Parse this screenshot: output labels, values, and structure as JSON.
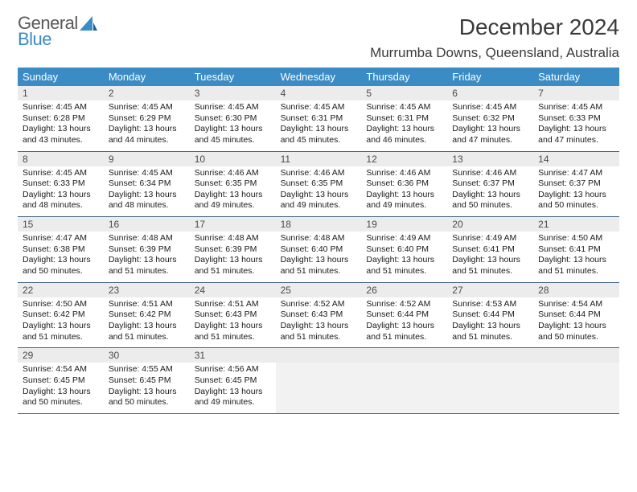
{
  "logo": {
    "line1": "General",
    "line2": "Blue"
  },
  "title": "December 2024",
  "location": "Murrumba Downs, Queensland, Australia",
  "colors": {
    "header_bg": "#3b8bc4",
    "header_text": "#ffffff",
    "daynum_bg": "#ececec",
    "border": "#446688",
    "logo_gray": "#58595b",
    "logo_blue": "#3b8bc4"
  },
  "dayNames": [
    "Sunday",
    "Monday",
    "Tuesday",
    "Wednesday",
    "Thursday",
    "Friday",
    "Saturday"
  ],
  "weeks": [
    [
      {
        "n": "1",
        "sr": "4:45 AM",
        "ss": "6:28 PM",
        "dl": "13 hours and 43 minutes."
      },
      {
        "n": "2",
        "sr": "4:45 AM",
        "ss": "6:29 PM",
        "dl": "13 hours and 44 minutes."
      },
      {
        "n": "3",
        "sr": "4:45 AM",
        "ss": "6:30 PM",
        "dl": "13 hours and 45 minutes."
      },
      {
        "n": "4",
        "sr": "4:45 AM",
        "ss": "6:31 PM",
        "dl": "13 hours and 45 minutes."
      },
      {
        "n": "5",
        "sr": "4:45 AM",
        "ss": "6:31 PM",
        "dl": "13 hours and 46 minutes."
      },
      {
        "n": "6",
        "sr": "4:45 AM",
        "ss": "6:32 PM",
        "dl": "13 hours and 47 minutes."
      },
      {
        "n": "7",
        "sr": "4:45 AM",
        "ss": "6:33 PM",
        "dl": "13 hours and 47 minutes."
      }
    ],
    [
      {
        "n": "8",
        "sr": "4:45 AM",
        "ss": "6:33 PM",
        "dl": "13 hours and 48 minutes."
      },
      {
        "n": "9",
        "sr": "4:45 AM",
        "ss": "6:34 PM",
        "dl": "13 hours and 48 minutes."
      },
      {
        "n": "10",
        "sr": "4:46 AM",
        "ss": "6:35 PM",
        "dl": "13 hours and 49 minutes."
      },
      {
        "n": "11",
        "sr": "4:46 AM",
        "ss": "6:35 PM",
        "dl": "13 hours and 49 minutes."
      },
      {
        "n": "12",
        "sr": "4:46 AM",
        "ss": "6:36 PM",
        "dl": "13 hours and 49 minutes."
      },
      {
        "n": "13",
        "sr": "4:46 AM",
        "ss": "6:37 PM",
        "dl": "13 hours and 50 minutes."
      },
      {
        "n": "14",
        "sr": "4:47 AM",
        "ss": "6:37 PM",
        "dl": "13 hours and 50 minutes."
      }
    ],
    [
      {
        "n": "15",
        "sr": "4:47 AM",
        "ss": "6:38 PM",
        "dl": "13 hours and 50 minutes."
      },
      {
        "n": "16",
        "sr": "4:48 AM",
        "ss": "6:39 PM",
        "dl": "13 hours and 51 minutes."
      },
      {
        "n": "17",
        "sr": "4:48 AM",
        "ss": "6:39 PM",
        "dl": "13 hours and 51 minutes."
      },
      {
        "n": "18",
        "sr": "4:48 AM",
        "ss": "6:40 PM",
        "dl": "13 hours and 51 minutes."
      },
      {
        "n": "19",
        "sr": "4:49 AM",
        "ss": "6:40 PM",
        "dl": "13 hours and 51 minutes."
      },
      {
        "n": "20",
        "sr": "4:49 AM",
        "ss": "6:41 PM",
        "dl": "13 hours and 51 minutes."
      },
      {
        "n": "21",
        "sr": "4:50 AM",
        "ss": "6:41 PM",
        "dl": "13 hours and 51 minutes."
      }
    ],
    [
      {
        "n": "22",
        "sr": "4:50 AM",
        "ss": "6:42 PM",
        "dl": "13 hours and 51 minutes."
      },
      {
        "n": "23",
        "sr": "4:51 AM",
        "ss": "6:42 PM",
        "dl": "13 hours and 51 minutes."
      },
      {
        "n": "24",
        "sr": "4:51 AM",
        "ss": "6:43 PM",
        "dl": "13 hours and 51 minutes."
      },
      {
        "n": "25",
        "sr": "4:52 AM",
        "ss": "6:43 PM",
        "dl": "13 hours and 51 minutes."
      },
      {
        "n": "26",
        "sr": "4:52 AM",
        "ss": "6:44 PM",
        "dl": "13 hours and 51 minutes."
      },
      {
        "n": "27",
        "sr": "4:53 AM",
        "ss": "6:44 PM",
        "dl": "13 hours and 51 minutes."
      },
      {
        "n": "28",
        "sr": "4:54 AM",
        "ss": "6:44 PM",
        "dl": "13 hours and 50 minutes."
      }
    ],
    [
      {
        "n": "29",
        "sr": "4:54 AM",
        "ss": "6:45 PM",
        "dl": "13 hours and 50 minutes."
      },
      {
        "n": "30",
        "sr": "4:55 AM",
        "ss": "6:45 PM",
        "dl": "13 hours and 50 minutes."
      },
      {
        "n": "31",
        "sr": "4:56 AM",
        "ss": "6:45 PM",
        "dl": "13 hours and 49 minutes."
      },
      null,
      null,
      null,
      null
    ]
  ],
  "labels": {
    "sunrise": "Sunrise: ",
    "sunset": "Sunset: ",
    "daylight": "Daylight: "
  }
}
